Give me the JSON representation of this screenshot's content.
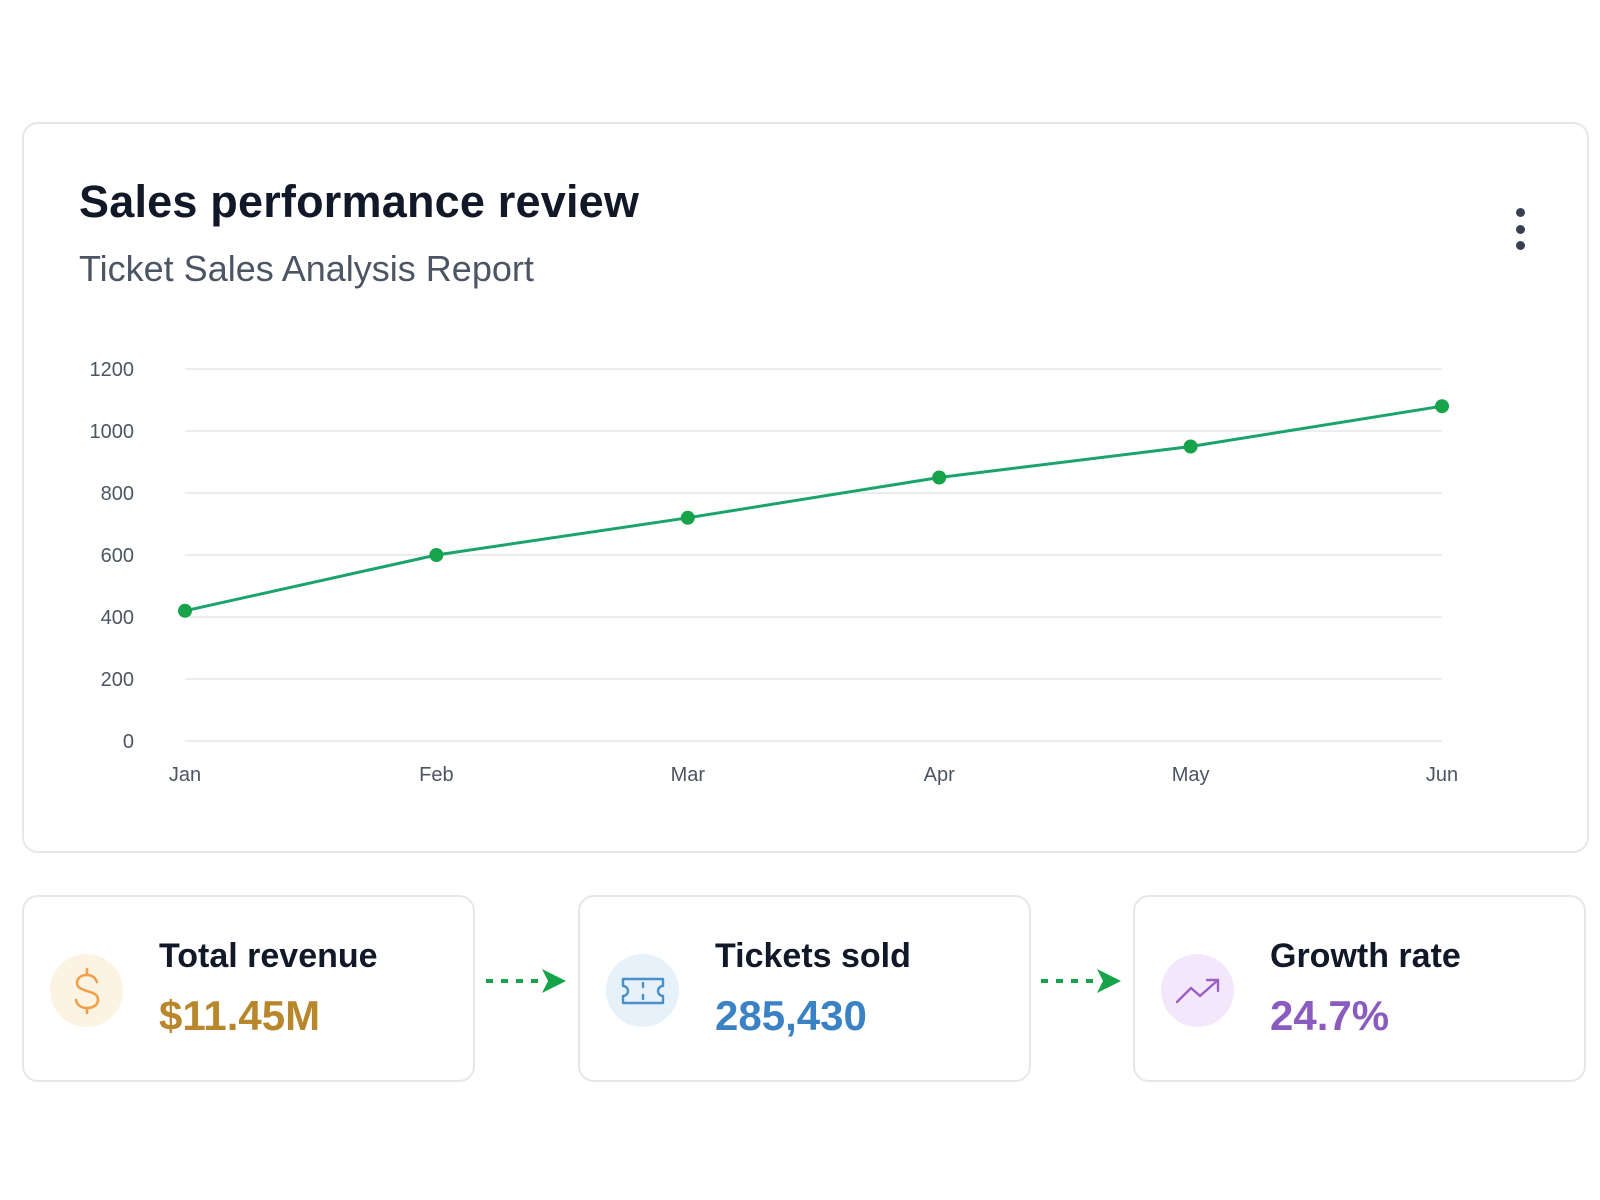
{
  "card": {
    "title": "Sales performance review",
    "subtitle": "Ticket Sales Analysis Report",
    "menu_icon": "more-vertical-icon"
  },
  "chart_data": {
    "type": "line",
    "categories": [
      "Jan",
      "Feb",
      "Mar",
      "Apr",
      "May",
      "Jun"
    ],
    "series": [
      {
        "values": [
          420,
          600,
          720,
          850,
          950,
          1080
        ],
        "color": "#16a34a"
      }
    ],
    "yticks": [
      0,
      200,
      400,
      600,
      800,
      1000,
      1200
    ],
    "ylim": [
      0,
      1200
    ],
    "grid": true,
    "legend": "none",
    "xlabel": "",
    "ylabel": ""
  },
  "stats": [
    {
      "label": "Total revenue",
      "value": "$11.45M",
      "icon": "dollar-icon",
      "color": "#b8862b",
      "icon_bg": "#fdf3e3",
      "icon_color": "#f0a04a"
    },
    {
      "label": "Tickets sold",
      "value": "285,430",
      "icon": "ticket-icon",
      "color": "#3b82c4",
      "icon_bg": "#e6f1fa",
      "icon_color": "#4a90c8"
    },
    {
      "label": "Growth rate",
      "value": "24.7%",
      "icon": "trending-up-icon",
      "color": "#8b5cc0",
      "icon_bg": "#f3e8fb",
      "icon_color": "#9b5fc6"
    }
  ],
  "connector_color": "#16a34a"
}
